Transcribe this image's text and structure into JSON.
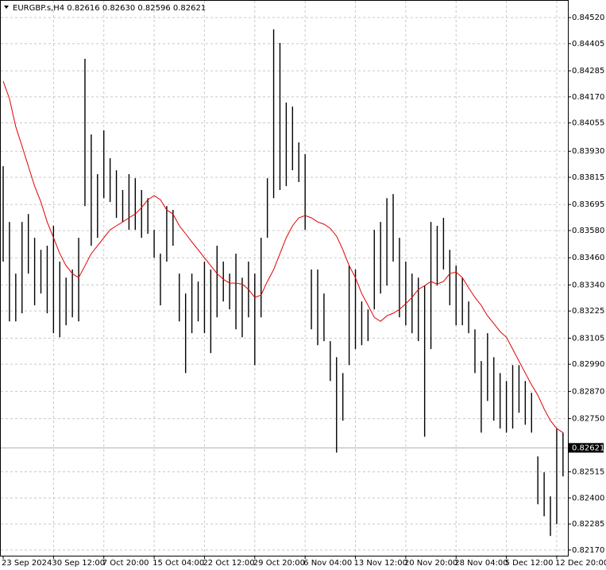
{
  "chart_data": {
    "type": "ohlc",
    "title": "EURGBP.s,H4  0.82616 0.82630 0.82596 0.82621",
    "categories": [
      "23 Sep 2024",
      null,
      null,
      null,
      null,
      null,
      null,
      null,
      "30 Sep 12:00",
      null,
      null,
      null,
      null,
      null,
      null,
      null,
      "7 Oct 20:00",
      null,
      null,
      null,
      null,
      null,
      null,
      null,
      "15 Oct 04:00",
      null,
      null,
      null,
      null,
      null,
      null,
      null,
      "22 Oct 12:00",
      null,
      null,
      null,
      null,
      null,
      null,
      null,
      "29 Oct 20:00",
      null,
      null,
      null,
      null,
      null,
      null,
      null,
      "6 Nov 04:00",
      null,
      null,
      null,
      null,
      null,
      null,
      null,
      "13 Nov 12:00",
      null,
      null,
      null,
      null,
      null,
      null,
      null,
      "20 Nov 20:00",
      null,
      null,
      null,
      null,
      null,
      null,
      null,
      "28 Nov 04:00",
      null,
      null,
      null,
      null,
      null,
      null,
      null,
      "5 Dec 12:00",
      null,
      null,
      null,
      null,
      null,
      null,
      null,
      "12 Dec 20:00",
      null
    ],
    "high": [
      0.83864,
      0.83618,
      0.8339,
      0.83618,
      0.83653,
      0.83548,
      0.83495,
      0.83513,
      0.83601,
      0.83443,
      0.83372,
      0.83408,
      0.83548,
      0.84338,
      0.84004,
      0.83829,
      0.84022,
      0.83899,
      0.83846,
      0.83759,
      0.83829,
      0.83811,
      0.83759,
      0.83723,
      0.83583,
      0.83478,
      0.83688,
      0.83671,
      0.8339,
      0.83302,
      0.8339,
      0.83355,
      0.83443,
      0.83408,
      0.83513,
      0.83443,
      0.8339,
      0.83478,
      0.83372,
      0.83443,
      0.8339,
      0.83548,
      0.83811,
      0.84468,
      0.84408,
      0.84145,
      0.84127,
      0.83969,
      0.83917,
      0.83408,
      0.83408,
      0.83302,
      0.83092,
      0.83021,
      0.82951,
      0.83425,
      0.83408,
      0.83267,
      0.83232,
      0.83583,
      0.83618,
      0.83723,
      0.83741,
      0.83548,
      0.83443,
      0.8339,
      0.83372,
      0.83337,
      0.83618,
      0.83601,
      0.83636,
      0.83495,
      0.83425,
      0.83372,
      0.83267,
      0.83144,
      0.83004,
      0.83127,
      0.83021,
      0.82951,
      0.82916,
      0.82986,
      0.82986,
      0.82916,
      0.82864,
      0.82583,
      0.82513,
      0.82407,
      0.82706,
      0.82688
    ],
    "low": [
      0.83443,
      0.83179,
      0.83179,
      0.83215,
      0.8339,
      0.8325,
      0.83302,
      0.83215,
      0.83127,
      0.83109,
      0.83162,
      0.83197,
      0.83179,
      0.83688,
      0.83513,
      0.83548,
      0.83723,
      0.83706,
      0.83636,
      0.83618,
      0.83583,
      0.83583,
      0.83548,
      0.83566,
      0.8346,
      0.8325,
      0.83443,
      0.83513,
      0.83179,
      0.82951,
      0.83127,
      0.83179,
      0.83127,
      0.83039,
      0.83197,
      0.83267,
      0.83232,
      0.83144,
      0.83109,
      0.83197,
      0.82986,
      0.83197,
      0.83548,
      0.83723,
      0.83759,
      0.83776,
      0.83846,
      0.83794,
      0.83583,
      0.83144,
      0.83074,
      0.83092,
      0.82916,
      0.826,
      0.82741,
      0.82986,
      0.83057,
      0.83074,
      0.83092,
      0.83232,
      0.83302,
      0.83337,
      0.83443,
      0.83197,
      0.83162,
      0.83127,
      0.83092,
      0.8267,
      0.83057,
      0.83337,
      0.83408,
      0.8325,
      0.83162,
      0.83162,
      0.83127,
      0.82951,
      0.82688,
      0.82828,
      0.82741,
      0.82706,
      0.82688,
      0.82706,
      0.82776,
      0.82723,
      0.82688,
      0.82372,
      0.82319,
      0.82232,
      0.82284,
      0.82495
    ],
    "bar_color": "#000000",
    "ma": {
      "color": "#e00000",
      "values": [
        0.84239,
        0.84162,
        0.84039,
        0.83952,
        0.83864,
        0.83776,
        0.83706,
        0.83618,
        0.83548,
        0.83478,
        0.83425,
        0.8339,
        0.83372,
        0.83425,
        0.83478,
        0.83513,
        0.83548,
        0.83583,
        0.83601,
        0.83618,
        0.83636,
        0.83653,
        0.83681,
        0.83716,
        0.83734,
        0.83716,
        0.83671,
        0.83653,
        0.83601,
        0.83566,
        0.8353,
        0.83495,
        0.8346,
        0.83425,
        0.8339,
        0.83365,
        0.83348,
        0.83348,
        0.83344,
        0.8332,
        0.83285,
        0.83295,
        0.83355,
        0.83408,
        0.83478,
        0.83548,
        0.83601,
        0.83636,
        0.83646,
        0.83636,
        0.83618,
        0.83608,
        0.8359,
        0.83555,
        0.83495,
        0.83425,
        0.83372,
        0.83302,
        0.8325,
        0.83197,
        0.83179,
        0.83204,
        0.83215,
        0.83232,
        0.83257,
        0.83285,
        0.8332,
        0.83337,
        0.83355,
        0.83344,
        0.83355,
        0.8339,
        0.83397,
        0.83372,
        0.83327,
        0.83285,
        0.8325,
        0.83204,
        0.83169,
        0.83134,
        0.83109,
        0.83057,
        0.83004,
        0.82951,
        0.82899,
        0.82853,
        0.82793,
        0.82741,
        0.82706,
        0.82688
      ]
    },
    "current_price": 0.82621,
    "ylim": [
      0.82145,
      0.84594
    ],
    "yticks": [
      {
        "value": 0.8452,
        "label": "0.84520"
      },
      {
        "value": 0.84405,
        "label": "0.84405"
      },
      {
        "value": 0.84285,
        "label": "0.84285"
      },
      {
        "value": 0.8417,
        "label": "0.84170"
      },
      {
        "value": 0.84055,
        "label": "0.84055"
      },
      {
        "value": 0.8393,
        "label": "0.83930"
      },
      {
        "value": 0.83815,
        "label": "0.83815"
      },
      {
        "value": 0.83695,
        "label": "0.83695"
      },
      {
        "value": 0.8358,
        "label": "0.83580"
      },
      {
        "value": 0.8346,
        "label": "0.83460"
      },
      {
        "value": 0.8334,
        "label": "0.83340"
      },
      {
        "value": 0.83225,
        "label": "0.83225"
      },
      {
        "value": 0.83105,
        "label": "0.83105"
      },
      {
        "value": 0.8299,
        "label": "0.82990"
      },
      {
        "value": 0.8287,
        "label": "0.82870"
      },
      {
        "value": 0.8275,
        "label": "0.82750"
      },
      {
        "value": 0.82515,
        "label": "0.82515"
      },
      {
        "value": 0.824,
        "label": "0.82400"
      },
      {
        "value": 0.82285,
        "label": "0.82285"
      },
      {
        "value": 0.8217,
        "label": "0.82170"
      }
    ],
    "grid": true
  }
}
